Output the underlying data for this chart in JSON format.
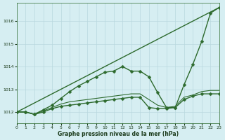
{
  "background_color": "#d6eef2",
  "grid_color": "#b8d8de",
  "line_color": "#2d6a2d",
  "xlabel": "Graphe pression niveau de la mer (hPa)",
  "xlim": [
    0,
    23
  ],
  "ylim": [
    1011.5,
    1016.8
  ],
  "yticks": [
    1012,
    1013,
    1014,
    1015,
    1016
  ],
  "xticks": [
    0,
    1,
    2,
    3,
    4,
    5,
    6,
    7,
    8,
    9,
    10,
    11,
    12,
    13,
    14,
    15,
    16,
    17,
    18,
    19,
    20,
    21,
    22,
    23
  ],
  "series": [
    {
      "x": [
        0,
        23
      ],
      "y": [
        1012.0,
        1016.6
      ],
      "marker": null,
      "markersize": 0,
      "linewidth": 1.0
    },
    {
      "x": [
        0,
        1,
        2,
        3,
        4,
        5,
        6,
        7,
        8,
        9,
        10,
        11,
        12,
        13,
        14,
        15,
        16,
        17,
        18,
        19,
        20,
        21,
        22,
        23
      ],
      "y": [
        1012.0,
        1012.0,
        1011.9,
        1012.1,
        1012.3,
        1012.6,
        1012.9,
        1013.15,
        1013.35,
        1013.55,
        1013.75,
        1013.8,
        1014.0,
        1013.8,
        1013.8,
        1013.55,
        1012.85,
        1012.2,
        1012.2,
        1013.2,
        1014.1,
        1015.1,
        1016.35,
        1016.6
      ],
      "marker": "D",
      "markersize": 2.5,
      "linewidth": 1.0
    },
    {
      "x": [
        0,
        1,
        2,
        3,
        4,
        5,
        6,
        7,
        8,
        9,
        10,
        11,
        12,
        13,
        14,
        15,
        16,
        17,
        18,
        19,
        20,
        21,
        22,
        23
      ],
      "y": [
        1012.0,
        1012.0,
        1011.9,
        1012.0,
        1012.15,
        1012.25,
        1012.3,
        1012.35,
        1012.4,
        1012.45,
        1012.5,
        1012.55,
        1012.6,
        1012.65,
        1012.65,
        1012.2,
        1012.15,
        1012.15,
        1012.2,
        1012.55,
        1012.7,
        1012.8,
        1012.8,
        1012.8
      ],
      "marker": "D",
      "markersize": 2.5,
      "linewidth": 1.0
    },
    {
      "x": [
        0,
        1,
        2,
        3,
        4,
        5,
        6,
        7,
        8,
        9,
        10,
        11,
        12,
        13,
        14,
        15,
        16,
        17,
        18,
        19,
        20,
        21,
        22,
        23
      ],
      "y": [
        1012.0,
        1012.0,
        1011.9,
        1012.05,
        1012.2,
        1012.35,
        1012.45,
        1012.5,
        1012.55,
        1012.6,
        1012.65,
        1012.7,
        1012.75,
        1012.8,
        1012.8,
        1012.55,
        1012.3,
        1012.2,
        1012.25,
        1012.65,
        1012.75,
        1012.9,
        1012.95,
        1012.95
      ],
      "marker": null,
      "markersize": 0,
      "linewidth": 0.8
    }
  ]
}
